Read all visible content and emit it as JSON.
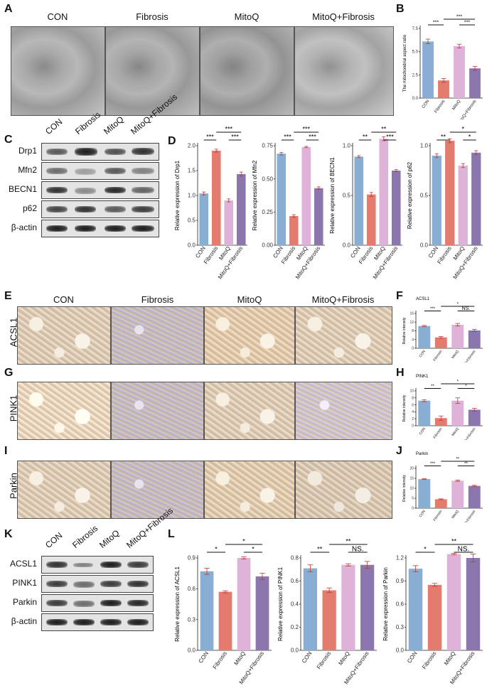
{
  "panels": {
    "A": "A",
    "B": "B",
    "C": "C",
    "D": "D",
    "E": "E",
    "F": "F",
    "G": "G",
    "H": "H",
    "I": "I",
    "J": "J",
    "K": "K",
    "L": "L"
  },
  "groups": [
    "CON",
    "Fibrosis",
    "MitoQ",
    "MitoQ+Fibrosis"
  ],
  "colors": {
    "CON": "#88aed3",
    "Fibrosis": "#e37b6e",
    "MitoQ": "#dfb3d9",
    "MitoQ+Fibrosis": "#8b77ad"
  },
  "ihc_rows": [
    "ACSL1",
    "PINK1",
    "Parkin"
  ],
  "wb_C": [
    "Drp1",
    "Mfn2",
    "BECN1",
    "p62",
    "β-actin"
  ],
  "wb_K": [
    "ACSL1",
    "PINK1",
    "Parkin",
    "β-actin"
  ],
  "chart_data": [
    {
      "id": "B",
      "type": "bar",
      "categories": [
        "CON",
        "Fibrosis",
        "MitoQ",
        "MitoQ+Fibrosis"
      ],
      "values": [
        6.1,
        1.9,
        5.6,
        3.2
      ],
      "errors": [
        0.25,
        0.2,
        0.2,
        0.2
      ],
      "ylabel": "The mitochondrial aspect ratio",
      "ylim": [
        0,
        7.5
      ],
      "yticks": [
        "0.0",
        "2.5",
        "5.0",
        "7.5"
      ],
      "sig": [
        {
          "a": 0,
          "b": 1,
          "t": "***"
        },
        {
          "a": 1,
          "b": 3,
          "t": "***"
        },
        {
          "a": 2,
          "b": 3,
          "t": "***"
        }
      ]
    },
    {
      "id": "D1",
      "type": "bar",
      "categories": [
        "CON",
        "Fibrosis",
        "MitoQ",
        "MitoQ+Fibrosis"
      ],
      "values": [
        1.04,
        1.9,
        0.9,
        1.43
      ],
      "errors": [
        0.03,
        0.03,
        0.03,
        0.04
      ],
      "ylabel": "Relative expression of Drp1",
      "ylim": [
        0,
        2.0
      ],
      "yticks": [
        "0.0",
        "0.5",
        "1.0",
        "1.5",
        "2.0"
      ],
      "sig": [
        {
          "a": 0,
          "b": 1,
          "t": "***"
        },
        {
          "a": 1,
          "b": 3,
          "t": "***"
        },
        {
          "a": 2,
          "b": 3,
          "t": "***"
        }
      ]
    },
    {
      "id": "D2",
      "type": "bar",
      "categories": [
        "CON",
        "Fibrosis",
        "MitoQ",
        "MitoQ+Fibrosis"
      ],
      "values": [
        0.69,
        0.22,
        0.74,
        0.43
      ],
      "errors": [
        0.01,
        0.01,
        0.005,
        0.01
      ],
      "ylabel": "Relative expression of Mfn2",
      "ylim": [
        0,
        0.75
      ],
      "yticks": [
        "0.00",
        "0.25",
        "0.50",
        "0.75"
      ],
      "sig": [
        {
          "a": 0,
          "b": 1,
          "t": "***"
        },
        {
          "a": 1,
          "b": 3,
          "t": "***"
        },
        {
          "a": 2,
          "b": 3,
          "t": "***"
        }
      ]
    },
    {
      "id": "D3",
      "type": "bar",
      "categories": [
        "CON",
        "Fibrosis",
        "MitoQ",
        "MitoQ+Fibrosis"
      ],
      "values": [
        0.89,
        0.51,
        1.07,
        0.75
      ],
      "errors": [
        0.01,
        0.02,
        0.02,
        0.01
      ],
      "ylabel": "Relative expression of BECN1",
      "ylim": [
        0,
        1.0
      ],
      "yticks": [
        "0.0",
        "0.5",
        "1.0"
      ],
      "sig": [
        {
          "a": 0,
          "b": 1,
          "t": "**"
        },
        {
          "a": 1,
          "b": 3,
          "t": "**"
        },
        {
          "a": 2,
          "b": 3,
          "t": "***"
        }
      ]
    },
    {
      "id": "D4",
      "type": "bar",
      "categories": [
        "CON",
        "Fibrosis",
        "MitoQ",
        "MitoQ+Fibrosis"
      ],
      "values": [
        0.9,
        1.05,
        0.8,
        0.93
      ],
      "errors": [
        0.02,
        0.02,
        0.02,
        0.02
      ],
      "ylabel": "Relative expression of p62",
      "ylim": [
        0,
        1.0
      ],
      "yticks": [
        "0.0",
        "0.5",
        "1.0"
      ],
      "sig": [
        {
          "a": 0,
          "b": 1,
          "t": "**"
        },
        {
          "a": 1,
          "b": 3,
          "t": "*"
        },
        {
          "a": 2,
          "b": 3,
          "t": "*"
        }
      ]
    },
    {
      "id": "F",
      "type": "bar",
      "categories": [
        "CON",
        "Fibrosis",
        "MitoQ",
        "MitoQ+Fibrosis"
      ],
      "values": [
        10.2,
        5.0,
        10.8,
        8.2
      ],
      "errors": [
        0.3,
        0.4,
        0.6,
        0.5
      ],
      "title": "ACSL1",
      "ylabel": "Relative intensity",
      "ylim": [
        0,
        16
      ],
      "yticks": [
        "0",
        "4",
        "8",
        "12",
        "16"
      ],
      "sig": [
        {
          "a": 0,
          "b": 1,
          "t": "***"
        },
        {
          "a": 1,
          "b": 3,
          "t": "*"
        },
        {
          "a": 2,
          "b": 3,
          "t": "NS."
        }
      ]
    },
    {
      "id": "H",
      "type": "bar",
      "categories": [
        "CON",
        "Fibrosis",
        "MitoQ",
        "MitoQ+Fibrosis"
      ],
      "values": [
        7.2,
        2.2,
        7.2,
        4.6
      ],
      "errors": [
        0.3,
        0.6,
        0.8,
        0.4
      ],
      "title": "PINK1",
      "ylabel": "Relative intensity",
      "ylim": [
        0,
        10
      ],
      "yticks": [
        "0",
        "2",
        "4",
        "6",
        "8",
        "10"
      ],
      "sig": [
        {
          "a": 0,
          "b": 1,
          "t": "**"
        },
        {
          "a": 1,
          "b": 3,
          "t": "*"
        },
        {
          "a": 2,
          "b": 3,
          "t": "*"
        }
      ]
    },
    {
      "id": "J",
      "type": "bar",
      "categories": [
        "CON",
        "Fibrosis",
        "MitoQ",
        "MitoQ+Fibrosis"
      ],
      "values": [
        14.6,
        4.5,
        13.8,
        11.2
      ],
      "errors": [
        0.2,
        0.2,
        0.3,
        0.3
      ],
      "title": "Parkin",
      "ylabel": "Relative intensity",
      "ylim": [
        0,
        20
      ],
      "yticks": [
        "0",
        "5",
        "10",
        "15",
        "20"
      ],
      "sig": [
        {
          "a": 0,
          "b": 1,
          "t": "***"
        },
        {
          "a": 1,
          "b": 3,
          "t": "**"
        },
        {
          "a": 2,
          "b": 3,
          "t": "**"
        }
      ]
    },
    {
      "id": "L1",
      "type": "bar",
      "categories": [
        "CON",
        "Fibrosis",
        "MitoQ",
        "MitoQ+Fibrosis"
      ],
      "values": [
        0.77,
        0.57,
        0.9,
        0.72
      ],
      "errors": [
        0.03,
        0.01,
        0.01,
        0.03
      ],
      "ylabel": "Relative expression of ACSL1",
      "ylim": [
        0,
        0.9
      ],
      "yticks": [
        "0.0",
        "0.3",
        "0.6",
        "0.9"
      ],
      "sig": [
        {
          "a": 0,
          "b": 1,
          "t": "*"
        },
        {
          "a": 1,
          "b": 3,
          "t": "*"
        },
        {
          "a": 2,
          "b": 3,
          "t": "*"
        }
      ]
    },
    {
      "id": "L2",
      "type": "bar",
      "categories": [
        "CON",
        "Fibrosis",
        "MitoQ",
        "MitoQ+Fibrosis"
      ],
      "values": [
        0.71,
        0.52,
        0.74,
        0.74
      ],
      "errors": [
        0.03,
        0.02,
        0.01,
        0.03
      ],
      "ylabel": "Relative expression of PINK1",
      "ylim": [
        0,
        0.8
      ],
      "yticks": [
        "0.0",
        "0.2",
        "0.4",
        "0.6",
        "0.8"
      ],
      "sig": [
        {
          "a": 0,
          "b": 1,
          "t": "**"
        },
        {
          "a": 1,
          "b": 3,
          "t": "**"
        },
        {
          "a": 2,
          "b": 3,
          "t": "NS."
        }
      ]
    },
    {
      "id": "L3",
      "type": "bar",
      "categories": [
        "CON",
        "Fibrosis",
        "MitoQ",
        "MitoQ+Fibrosis"
      ],
      "values": [
        1.06,
        0.85,
        1.25,
        1.2
      ],
      "errors": [
        0.04,
        0.02,
        0.01,
        0.05
      ],
      "ylabel": "Relative expression of Parkin",
      "ylim": [
        0,
        1.2
      ],
      "yticks": [
        "0.0",
        "0.3",
        "0.6",
        "0.9",
        "1.2"
      ],
      "sig": [
        {
          "a": 0,
          "b": 1,
          "t": "*"
        },
        {
          "a": 1,
          "b": 3,
          "t": "**"
        },
        {
          "a": 2,
          "b": 3,
          "t": "NS."
        }
      ]
    }
  ]
}
